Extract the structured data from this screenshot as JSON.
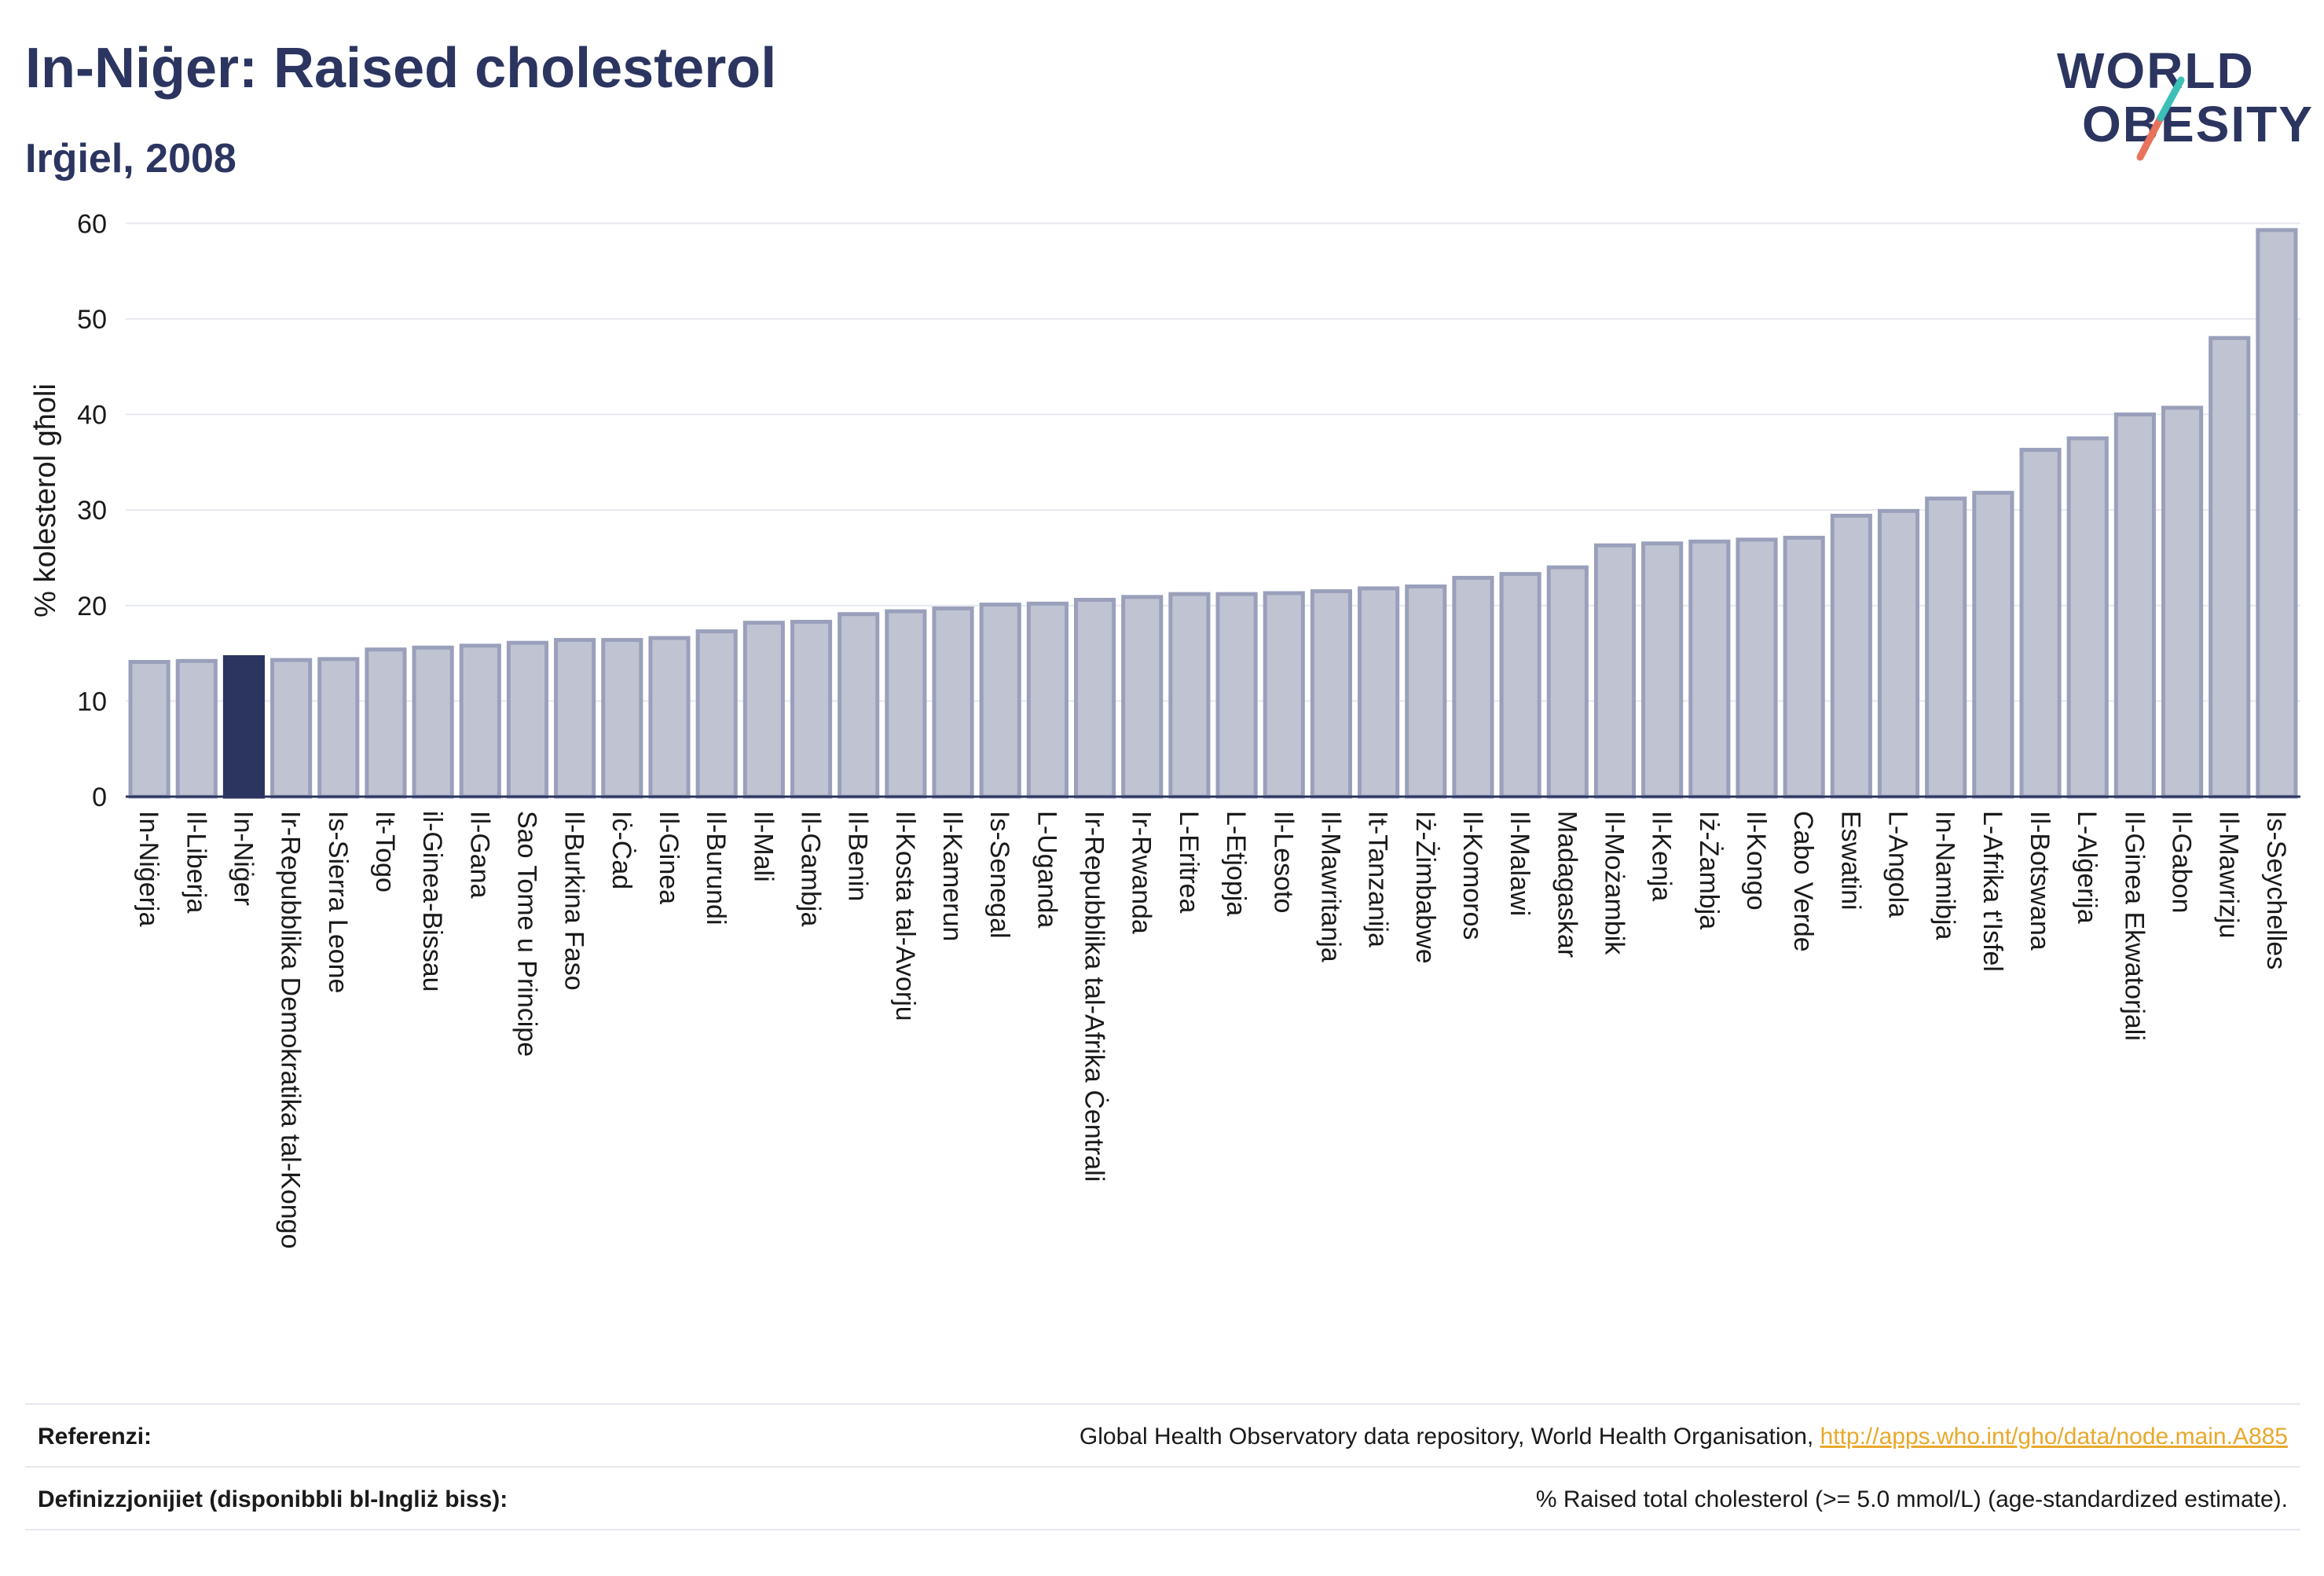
{
  "header": {
    "title": "In-Niġer: Raised cholesterol",
    "subtitle": "Irġiel, 2008"
  },
  "logo": {
    "line1": "WORLD",
    "line2": "OBESITY"
  },
  "colors": {
    "bar": "#c0c4d2",
    "bar_stroke": "#9aa0bb",
    "highlight": "#2b3560",
    "grid": "#e6e8ef",
    "logo_teal": "#3bbfb7",
    "logo_coral": "#e8735a",
    "link": "#e8a92c"
  },
  "chart_data": {
    "type": "bar",
    "ylabel": "% kolesterol għoli",
    "ylim": [
      0,
      62
    ],
    "yticks": [
      0,
      10,
      20,
      30,
      40,
      50,
      60
    ],
    "highlight": "In-Niġer",
    "grid": true,
    "categories": [
      "In-Niġerja",
      "Il-Liberja",
      "In-Niġer",
      "Ir-Repubblika Demokratika tal-Kongo",
      "Is-Sierra Leone",
      "It-Togo",
      "il-Ginea-Bissau",
      "Il-Gana",
      "Sao Tome u Principe",
      "Il-Burkina Faso",
      "Iċ-Ċad",
      "Il-Ginea",
      "Il-Burundi",
      "Il-Mali",
      "Il-Gambja",
      "Il-Benin",
      "Il-Kosta tal-Avorju",
      "Il-Kamerun",
      "Is-Senegal",
      "L-Uganda",
      "Ir-Repubblika tal-Afrika Ċentrali",
      "Ir-Rwanda",
      "L-Eritrea",
      "L-Etjopja",
      "Il-Lesoto",
      "Il-Mawritanja",
      "It-Tanzanija",
      "Iż-Żimbabwe",
      "Il-Komoros",
      "Il-Malawi",
      "Madagaskar",
      "Il-Możambik",
      "Il-Kenja",
      "Iż-Żambja",
      "Il-Kongo",
      "Cabo Verde",
      "Eswatini",
      "L-Angola",
      "In-Namibja",
      "L-Afrika t'Isfel",
      "Il-Botswana",
      "L-Alġerija",
      "Il-Ginea Ekwatorjali",
      "Il-Gabon",
      "Il-Mawrizju",
      "Is-Seychelles"
    ],
    "values": [
      14.1,
      14.2,
      14.6,
      14.3,
      14.4,
      15.4,
      15.6,
      15.8,
      16.1,
      16.4,
      16.4,
      16.6,
      17.3,
      18.2,
      18.3,
      19.1,
      19.4,
      19.7,
      20.1,
      20.2,
      20.6,
      20.9,
      21.2,
      21.2,
      21.3,
      21.5,
      21.8,
      22.0,
      22.9,
      23.3,
      24.0,
      26.3,
      26.5,
      26.7,
      26.9,
      27.1,
      29.4,
      29.9,
      31.2,
      31.8,
      36.3,
      37.5,
      40.0,
      40.7,
      48.0,
      59.3
    ]
  },
  "footer": {
    "sources_label": "Referenzi:",
    "sources_text": "Global Health Observatory data repository, World Health Organisation, ",
    "sources_link": "http://apps.who.int/gho/data/node.main.A885",
    "definitions_label": "Definizzjonijiet (disponibbli bl-Ingliż biss):",
    "definitions_text": "% Raised total cholesterol (>= 5.0 mmol/L) (age-standardized estimate)."
  }
}
